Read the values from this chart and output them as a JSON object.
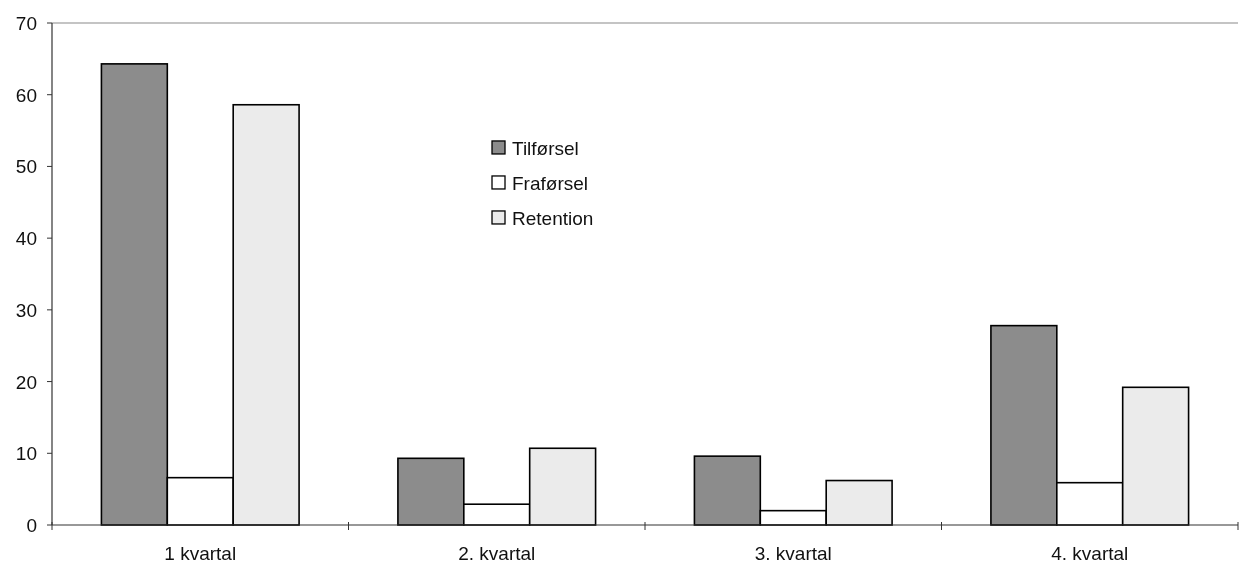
{
  "chart_data": {
    "type": "bar",
    "categories": [
      "1 kvartal",
      "2. kvartal",
      "3. kvartal",
      "4. kvartal"
    ],
    "series": [
      {
        "name": "Tilførsel",
        "color": "#8c8c8c",
        "values": [
          64.3,
          9.3,
          9.6,
          27.8
        ]
      },
      {
        "name": "Fraførsel",
        "color": "#ffffff",
        "values": [
          6.6,
          2.9,
          2.0,
          5.9
        ]
      },
      {
        "name": "Retention",
        "color": "#ebebeb",
        "values": [
          58.6,
          10.7,
          6.2,
          19.2
        ]
      }
    ],
    "ylim": [
      0,
      70
    ],
    "yticks": [
      0,
      10,
      20,
      30,
      40,
      50,
      60,
      70
    ],
    "legend": "top"
  }
}
